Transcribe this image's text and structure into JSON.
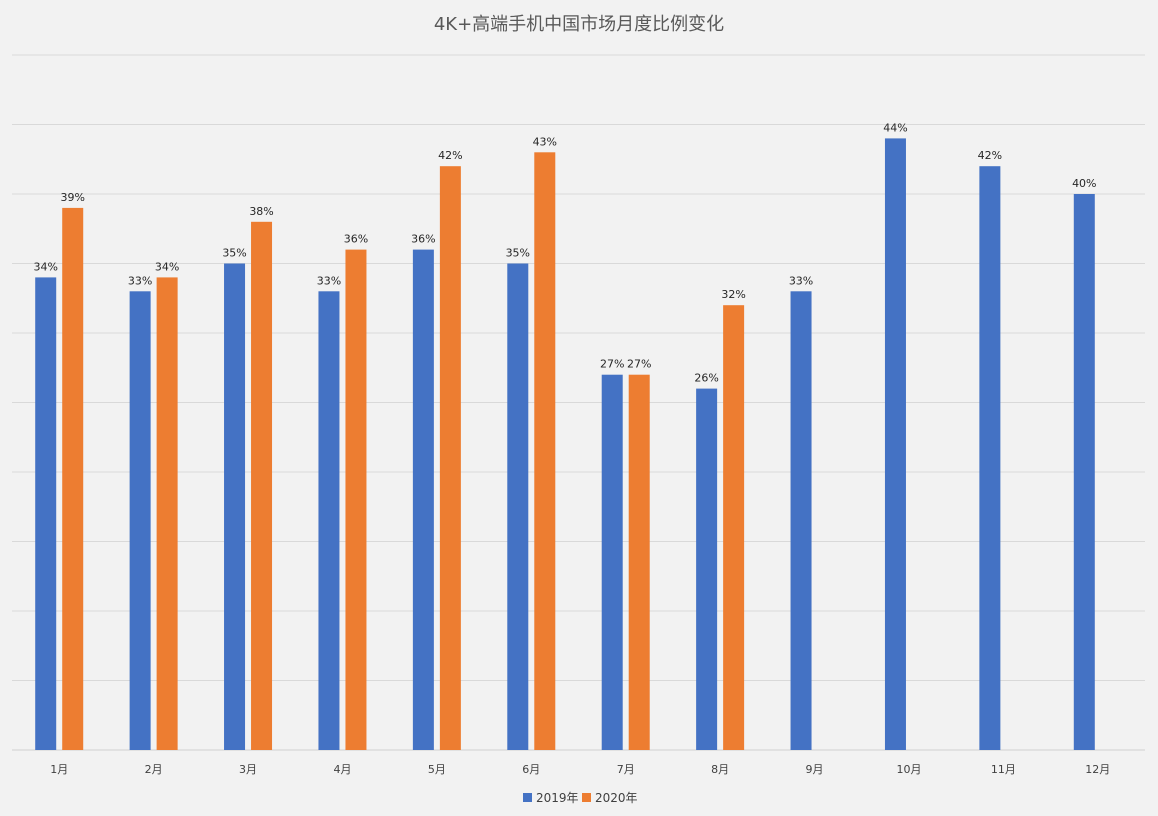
{
  "chart_data": {
    "type": "bar",
    "title": "4K+高端手机中国市场月度比例变化",
    "categories": [
      "1月",
      "2月",
      "3月",
      "4月",
      "5月",
      "6月",
      "7月",
      "8月",
      "9月",
      "10月",
      "11月",
      "12月"
    ],
    "series": [
      {
        "name": "2019年",
        "values": [
          34,
          33,
          35,
          33,
          36,
          35,
          27,
          26,
          33,
          44,
          42,
          40
        ],
        "labels": [
          "34%",
          "33%",
          "35%",
          "33%",
          "36%",
          "35%",
          "27%",
          "26%",
          "33%",
          "44%",
          "42%",
          "40%"
        ],
        "color": "#4472c4"
      },
      {
        "name": "2020年",
        "values": [
          39,
          34,
          38,
          36,
          42,
          43,
          27,
          32,
          null,
          null,
          null,
          null
        ],
        "labels": [
          "39%",
          "34%",
          "38%",
          "36%",
          "42%",
          "43%",
          "27%",
          "32%",
          "",
          "",
          "",
          ""
        ],
        "color": "#ed7d31"
      }
    ],
    "ylim": [
      0,
      50
    ],
    "grid": true,
    "legend": "bottom"
  }
}
